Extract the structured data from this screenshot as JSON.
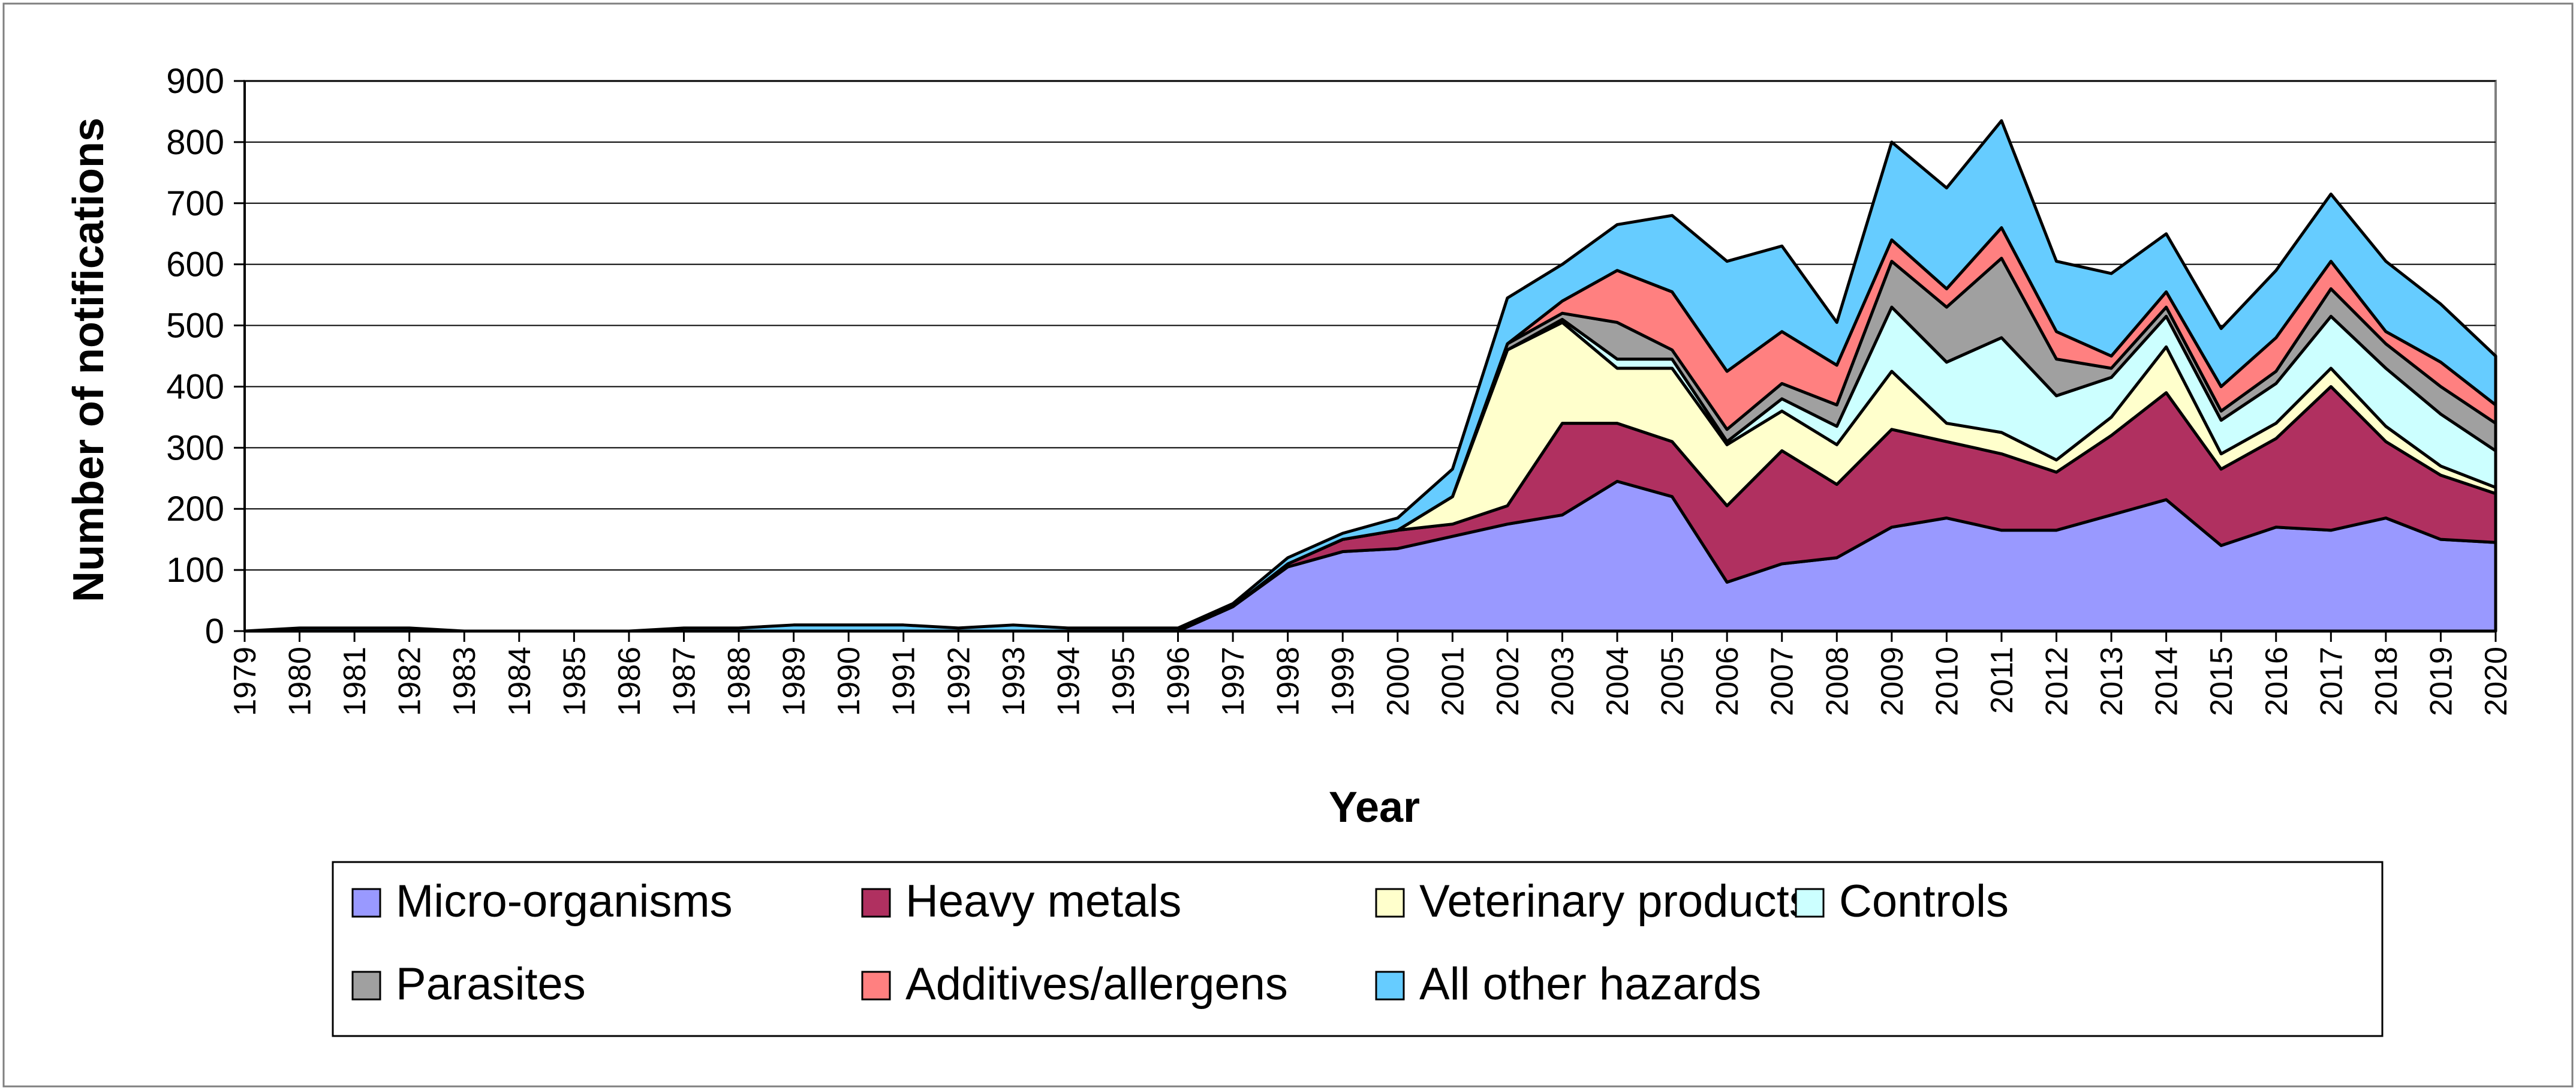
{
  "chart_data": {
    "type": "area",
    "stacked": true,
    "title": "",
    "xlabel": "Year",
    "ylabel": "Number of notifications",
    "ylim": [
      0,
      900
    ],
    "yticks": [
      0,
      100,
      200,
      300,
      400,
      500,
      600,
      700,
      800,
      900
    ],
    "grid": true,
    "legend_position": "bottom",
    "x": [
      "1979",
      "1980",
      "1981",
      "1982",
      "1983",
      "1984",
      "1985",
      "1986",
      "1987",
      "1988",
      "1989",
      "1990",
      "1991",
      "1992",
      "1993",
      "1994",
      "1995",
      "1996",
      "1997",
      "1998",
      "1999",
      "2000",
      "2001",
      "2002",
      "2003",
      "2004",
      "2005",
      "2006",
      "2007",
      "2008",
      "2009",
      "2010",
      "2011",
      "2012",
      "2013",
      "2014",
      "2015",
      "2016",
      "2017",
      "2018",
      "2019",
      "2020"
    ],
    "series": [
      {
        "name": "Micro-organisms",
        "color": "#9999ff",
        "values": [
          0,
          0,
          0,
          0,
          0,
          0,
          0,
          0,
          0,
          0,
          0,
          0,
          0,
          0,
          0,
          0,
          0,
          0,
          40,
          105,
          130,
          135,
          155,
          175,
          190,
          245,
          220,
          80,
          110,
          120,
          170,
          185,
          165,
          165,
          190,
          215,
          140,
          170,
          165,
          185,
          150,
          145
        ]
      },
      {
        "name": "Heavy metals",
        "color": "#b03060",
        "values": [
          0,
          0,
          0,
          0,
          0,
          0,
          0,
          0,
          0,
          0,
          0,
          0,
          0,
          0,
          0,
          0,
          0,
          0,
          0,
          5,
          20,
          30,
          20,
          30,
          150,
          95,
          90,
          125,
          185,
          120,
          160,
          125,
          125,
          95,
          130,
          175,
          125,
          145,
          235,
          125,
          105,
          80
        ]
      },
      {
        "name": "Veterinary products",
        "color": "#ffffcc",
        "values": [
          0,
          0,
          0,
          0,
          0,
          0,
          0,
          0,
          0,
          0,
          0,
          0,
          0,
          0,
          0,
          0,
          0,
          0,
          0,
          0,
          0,
          0,
          45,
          255,
          165,
          90,
          120,
          100,
          65,
          65,
          95,
          30,
          35,
          20,
          30,
          75,
          25,
          25,
          30,
          25,
          15,
          10
        ]
      },
      {
        "name": "Controls",
        "color": "#ccffff",
        "values": [
          0,
          0,
          0,
          0,
          0,
          0,
          0,
          0,
          0,
          0,
          0,
          0,
          0,
          0,
          0,
          0,
          0,
          0,
          0,
          0,
          0,
          0,
          0,
          0,
          5,
          15,
          15,
          5,
          20,
          30,
          105,
          100,
          155,
          105,
          65,
          50,
          55,
          65,
          85,
          95,
          85,
          60
        ]
      },
      {
        "name": "Parasites",
        "color": "#a0a0a0",
        "values": [
          0,
          0,
          0,
          0,
          0,
          0,
          0,
          0,
          0,
          0,
          0,
          0,
          0,
          0,
          0,
          0,
          0,
          0,
          0,
          0,
          0,
          0,
          0,
          10,
          10,
          60,
          15,
          20,
          25,
          35,
          75,
          90,
          130,
          60,
          15,
          15,
          15,
          20,
          45,
          40,
          45,
          45
        ]
      },
      {
        "name": "Additives/allergens",
        "color": "#ff8080",
        "values": [
          0,
          0,
          0,
          0,
          0,
          0,
          0,
          0,
          0,
          0,
          0,
          0,
          0,
          0,
          0,
          0,
          0,
          0,
          0,
          0,
          0,
          0,
          0,
          0,
          20,
          85,
          95,
          95,
          85,
          65,
          35,
          30,
          50,
          45,
          20,
          25,
          40,
          55,
          45,
          20,
          40,
          30
        ]
      },
      {
        "name": "All other hazards",
        "color": "#66ccff",
        "values": [
          0,
          5,
          5,
          5,
          0,
          0,
          0,
          0,
          5,
          5,
          10,
          10,
          10,
          5,
          10,
          5,
          5,
          5,
          5,
          10,
          10,
          20,
          45,
          75,
          60,
          75,
          125,
          180,
          140,
          70,
          160,
          165,
          175,
          115,
          135,
          95,
          95,
          110,
          110,
          115,
          95,
          80
        ]
      }
    ]
  }
}
